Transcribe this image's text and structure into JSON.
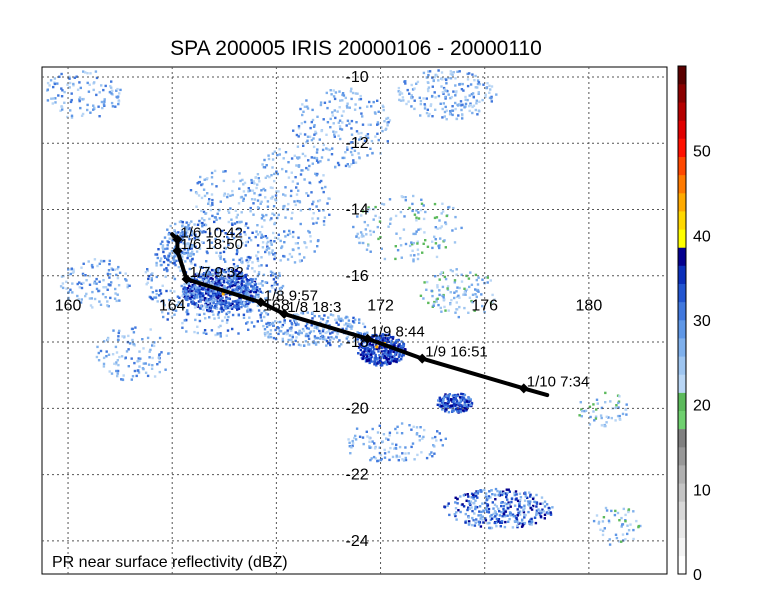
{
  "chart_data": {
    "type": "map",
    "title": "SPA 200005 IRIS 20000106 - 20000110",
    "caption": "PR near surface reflectivity (dBZ)",
    "lon_ticks": [
      "160",
      "164",
      "168",
      "172",
      "176",
      "180"
    ],
    "lat_ticks": [
      "-10",
      "-12",
      "-14",
      "-16",
      "-18",
      "-20",
      "-22",
      "-24"
    ],
    "lon_range": [
      159,
      183
    ],
    "lat_range": [
      -9.7,
      -25
    ],
    "colorbar": {
      "label_ticks": [
        "0",
        "10",
        "20",
        "30",
        "40",
        "50"
      ],
      "range": [
        0,
        60
      ],
      "colors": [
        "#ffffff",
        "#f4f4f4",
        "#e8e8e8",
        "#d8d8d8",
        "#c4c4c4",
        "#b0b0b0",
        "#989898",
        "#808080",
        "#6fd06f",
        "#5cba5c",
        "#b9d6f5",
        "#9ec5f0",
        "#7fb0ec",
        "#5f97e6",
        "#4178dd",
        "#2255d0",
        "#0b2fba",
        "#04008e",
        "#ffff00",
        "#ffd800",
        "#ffaa00",
        "#ff7a00",
        "#ff4800",
        "#ff1000",
        "#e00000",
        "#b40000",
        "#8a0000",
        "#5a0000"
      ]
    },
    "track": {
      "points": [
        {
          "lon": 164.2,
          "lat": -14.9,
          "label": "1/6 10:42"
        },
        {
          "lon": 164.2,
          "lat": -15.25,
          "label": "1/6 18:50"
        },
        {
          "lon": 164.55,
          "lat": -16.1,
          "label": "1/7 9:32"
        },
        {
          "lon": 167.4,
          "lat": -16.8,
          "label": "1/8 9:57"
        },
        {
          "lon": 168.3,
          "lat": -17.15,
          "label": "1/8 18:3"
        },
        {
          "lon": 171.5,
          "lat": -17.9,
          "label": "1/9 8:44"
        },
        {
          "lon": 173.6,
          "lat": -18.5,
          "label": "1/9 16:51"
        },
        {
          "lon": 177.5,
          "lat": -19.4,
          "label": "1/10 7:34"
        }
      ],
      "start": {
        "lon": 164.0,
        "lat": -14.75
      },
      "end": {
        "lon": 178.4,
        "lat": -19.6
      }
    }
  }
}
